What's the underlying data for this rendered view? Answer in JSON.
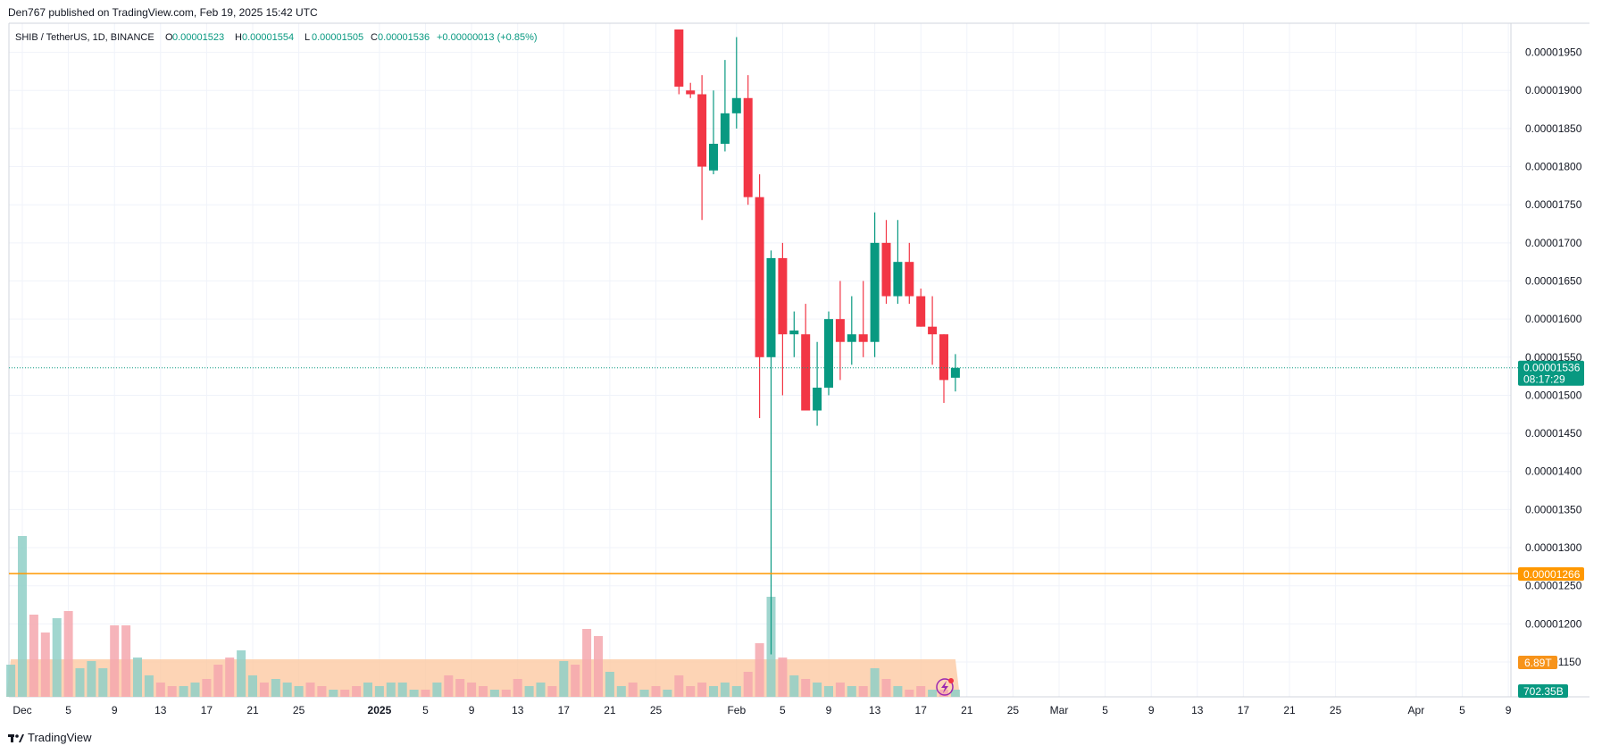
{
  "header": {
    "published": "Den767 published on TradingView.com, Feb 19, 2025 15:42 UTC"
  },
  "legend": {
    "symbol": "SHIB / TetherUS, 1D, BINANCE",
    "o_label": "O",
    "o_value": "0.00001523",
    "h_label": "H",
    "h_value": "0.00001554",
    "l_label": "L",
    "l_value": "0.00001505",
    "c_label": "C",
    "c_value": "0.00001536",
    "change": "+0.00000013 (+0.85%)"
  },
  "colors": {
    "up": "#089981",
    "down": "#f23645",
    "vol_up": "#8fcfc7",
    "vol_down": "#f5a7ae",
    "vol_ma_fill": "#fcc9a3",
    "horizontal_line": "#ff9800",
    "grid": "#f0f3fa",
    "axis_text": "#131722"
  },
  "chart_data": {
    "type": "candlestick",
    "series": [
      {
        "name": "SHIB / TetherUS",
        "points": [
          {
            "date": "2025-01-27",
            "o": 1.98e-05,
            "h": 1.98e-05,
            "l": 1.895e-05,
            "c": 1.905e-05
          },
          {
            "date": "2025-01-28",
            "o": 1.9e-05,
            "h": 1.91e-05,
            "l": 1.89e-05,
            "c": 1.895e-05
          },
          {
            "date": "2025-01-29",
            "o": 1.895e-05,
            "h": 1.92e-05,
            "l": 1.73e-05,
            "c": 1.8e-05
          },
          {
            "date": "2025-01-30",
            "o": 1.795e-05,
            "h": 1.9e-05,
            "l": 1.79e-05,
            "c": 1.83e-05
          },
          {
            "date": "2025-01-31",
            "o": 1.83e-05,
            "h": 1.94e-05,
            "l": 1.82e-05,
            "c": 1.87e-05
          },
          {
            "date": "2025-02-01",
            "o": 1.87e-05,
            "h": 1.97e-05,
            "l": 1.85e-05,
            "c": 1.89e-05
          },
          {
            "date": "2025-02-02",
            "o": 1.89e-05,
            "h": 1.92e-05,
            "l": 1.75e-05,
            "c": 1.76e-05
          },
          {
            "date": "2025-02-03",
            "o": 1.76e-05,
            "h": 1.79e-05,
            "l": 1.47e-05,
            "c": 1.55e-05
          },
          {
            "date": "2025-02-04",
            "o": 1.55e-05,
            "h": 1.69e-05,
            "l": 1.16e-05,
            "c": 1.68e-05
          },
          {
            "date": "2025-02-05",
            "o": 1.68e-05,
            "h": 1.7e-05,
            "l": 1.5e-05,
            "c": 1.58e-05
          },
          {
            "date": "2025-02-06",
            "o": 1.58e-05,
            "h": 1.61e-05,
            "l": 1.55e-05,
            "c": 1.585e-05
          },
          {
            "date": "2025-02-07",
            "o": 1.58e-05,
            "h": 1.62e-05,
            "l": 1.48e-05,
            "c": 1.48e-05
          },
          {
            "date": "2025-02-08",
            "o": 1.48e-05,
            "h": 1.57e-05,
            "l": 1.46e-05,
            "c": 1.51e-05
          },
          {
            "date": "2025-02-09",
            "o": 1.51e-05,
            "h": 1.61e-05,
            "l": 1.5e-05,
            "c": 1.6e-05
          },
          {
            "date": "2025-02-10",
            "o": 1.6e-05,
            "h": 1.65e-05,
            "l": 1.52e-05,
            "c": 1.57e-05
          },
          {
            "date": "2025-02-11",
            "o": 1.57e-05,
            "h": 1.63e-05,
            "l": 1.54e-05,
            "c": 1.58e-05
          },
          {
            "date": "2025-02-12",
            "o": 1.58e-05,
            "h": 1.65e-05,
            "l": 1.55e-05,
            "c": 1.57e-05
          },
          {
            "date": "2025-02-13",
            "o": 1.57e-05,
            "h": 1.74e-05,
            "l": 1.55e-05,
            "c": 1.7e-05
          },
          {
            "date": "2025-02-14",
            "o": 1.7e-05,
            "h": 1.73e-05,
            "l": 1.62e-05,
            "c": 1.63e-05
          },
          {
            "date": "2025-02-15",
            "o": 1.63e-05,
            "h": 1.73e-05,
            "l": 1.62e-05,
            "c": 1.675e-05
          },
          {
            "date": "2025-02-16",
            "o": 1.675e-05,
            "h": 1.7e-05,
            "l": 1.62e-05,
            "c": 1.63e-05
          },
          {
            "date": "2025-02-17",
            "o": 1.63e-05,
            "h": 1.64e-05,
            "l": 1.59e-05,
            "c": 1.59e-05
          },
          {
            "date": "2025-02-18",
            "o": 1.59e-05,
            "h": 1.63e-05,
            "l": 1.54e-05,
            "c": 1.58e-05
          },
          {
            "date": "2025-02-19",
            "o": 1.58e-05,
            "h": 1.58e-05,
            "l": 1.49e-05,
            "c": 1.52e-05
          },
          {
            "date": "2025-02-20",
            "o": 1.523e-05,
            "h": 1.554e-05,
            "l": 1.505e-05,
            "c": 1.536e-05
          }
        ]
      }
    ],
    "volume": [
      {
        "date": "2024-11-30",
        "v": 0.9,
        "up": true
      },
      {
        "date": "2024-12-01",
        "v": 4.5,
        "up": true
      },
      {
        "date": "2024-12-02",
        "v": 2.3,
        "up": false
      },
      {
        "date": "2024-12-03",
        "v": 1.8,
        "up": false
      },
      {
        "date": "2024-12-04",
        "v": 2.2,
        "up": true
      },
      {
        "date": "2024-12-05",
        "v": 2.4,
        "up": false
      },
      {
        "date": "2024-12-06",
        "v": 0.8,
        "up": true
      },
      {
        "date": "2024-12-07",
        "v": 1.0,
        "up": true
      },
      {
        "date": "2024-12-08",
        "v": 0.8,
        "up": true
      },
      {
        "date": "2024-12-09",
        "v": 2.0,
        "up": false
      },
      {
        "date": "2024-12-10",
        "v": 2.0,
        "up": false
      },
      {
        "date": "2024-12-11",
        "v": 1.1,
        "up": true
      },
      {
        "date": "2024-12-12",
        "v": 0.6,
        "up": true
      },
      {
        "date": "2024-12-13",
        "v": 0.4,
        "up": false
      },
      {
        "date": "2024-12-14",
        "v": 0.3,
        "up": false
      },
      {
        "date": "2024-12-15",
        "v": 0.3,
        "up": true
      },
      {
        "date": "2024-12-16",
        "v": 0.4,
        "up": true
      },
      {
        "date": "2024-12-17",
        "v": 0.5,
        "up": false
      },
      {
        "date": "2024-12-18",
        "v": 0.9,
        "up": false
      },
      {
        "date": "2024-12-19",
        "v": 1.1,
        "up": false
      },
      {
        "date": "2024-12-20",
        "v": 1.3,
        "up": true
      },
      {
        "date": "2024-12-21",
        "v": 0.6,
        "up": true
      },
      {
        "date": "2024-12-22",
        "v": 0.4,
        "up": false
      },
      {
        "date": "2024-12-23",
        "v": 0.5,
        "up": true
      },
      {
        "date": "2024-12-24",
        "v": 0.4,
        "up": true
      },
      {
        "date": "2024-12-25",
        "v": 0.3,
        "up": true
      },
      {
        "date": "2024-12-26",
        "v": 0.4,
        "up": false
      },
      {
        "date": "2024-12-27",
        "v": 0.3,
        "up": false
      },
      {
        "date": "2024-12-28",
        "v": 0.2,
        "up": true
      },
      {
        "date": "2024-12-29",
        "v": 0.2,
        "up": false
      },
      {
        "date": "2024-12-30",
        "v": 0.3,
        "up": false
      },
      {
        "date": "2024-12-31",
        "v": 0.4,
        "up": true
      },
      {
        "date": "2025-01-01",
        "v": 0.3,
        "up": true
      },
      {
        "date": "2025-01-02",
        "v": 0.4,
        "up": true
      },
      {
        "date": "2025-01-03",
        "v": 0.4,
        "up": true
      },
      {
        "date": "2025-01-04",
        "v": 0.2,
        "up": true
      },
      {
        "date": "2025-01-05",
        "v": 0.2,
        "up": false
      },
      {
        "date": "2025-01-06",
        "v": 0.4,
        "up": true
      },
      {
        "date": "2025-01-07",
        "v": 0.6,
        "up": false
      },
      {
        "date": "2025-01-08",
        "v": 0.5,
        "up": false
      },
      {
        "date": "2025-01-09",
        "v": 0.4,
        "up": false
      },
      {
        "date": "2025-01-10",
        "v": 0.3,
        "up": false
      },
      {
        "date": "2025-01-11",
        "v": 0.2,
        "up": true
      },
      {
        "date": "2025-01-12",
        "v": 0.2,
        "up": false
      },
      {
        "date": "2025-01-13",
        "v": 0.5,
        "up": false
      },
      {
        "date": "2025-01-14",
        "v": 0.3,
        "up": true
      },
      {
        "date": "2025-01-15",
        "v": 0.4,
        "up": true
      },
      {
        "date": "2025-01-16",
        "v": 0.3,
        "up": false
      },
      {
        "date": "2025-01-17",
        "v": 1.0,
        "up": true
      },
      {
        "date": "2025-01-18",
        "v": 0.9,
        "up": false
      },
      {
        "date": "2025-01-19",
        "v": 1.9,
        "up": false
      },
      {
        "date": "2025-01-20",
        "v": 1.7,
        "up": false
      },
      {
        "date": "2025-01-21",
        "v": 0.7,
        "up": true
      },
      {
        "date": "2025-01-22",
        "v": 0.3,
        "up": true
      },
      {
        "date": "2025-01-23",
        "v": 0.4,
        "up": false
      },
      {
        "date": "2025-01-24",
        "v": 0.2,
        "up": true
      },
      {
        "date": "2025-01-25",
        "v": 0.3,
        "up": false
      },
      {
        "date": "2025-01-26",
        "v": 0.2,
        "up": true
      },
      {
        "date": "2025-01-27",
        "v": 0.6,
        "up": false
      },
      {
        "date": "2025-01-28",
        "v": 0.3,
        "up": false
      },
      {
        "date": "2025-01-29",
        "v": 0.4,
        "up": false
      },
      {
        "date": "2025-01-30",
        "v": 0.3,
        "up": true
      },
      {
        "date": "2025-01-31",
        "v": 0.4,
        "up": true
      },
      {
        "date": "2025-02-01",
        "v": 0.3,
        "up": true
      },
      {
        "date": "2025-02-02",
        "v": 0.7,
        "up": false
      },
      {
        "date": "2025-02-03",
        "v": 1.5,
        "up": false
      },
      {
        "date": "2025-02-04",
        "v": 2.8,
        "up": true
      },
      {
        "date": "2025-02-05",
        "v": 1.1,
        "up": false
      },
      {
        "date": "2025-02-06",
        "v": 0.6,
        "up": true
      },
      {
        "date": "2025-02-07",
        "v": 0.5,
        "up": false
      },
      {
        "date": "2025-02-08",
        "v": 0.4,
        "up": true
      },
      {
        "date": "2025-02-09",
        "v": 0.3,
        "up": true
      },
      {
        "date": "2025-02-10",
        "v": 0.4,
        "up": false
      },
      {
        "date": "2025-02-11",
        "v": 0.3,
        "up": true
      },
      {
        "date": "2025-02-12",
        "v": 0.3,
        "up": false
      },
      {
        "date": "2025-02-13",
        "v": 0.8,
        "up": true
      },
      {
        "date": "2025-02-14",
        "v": 0.5,
        "up": false
      },
      {
        "date": "2025-02-15",
        "v": 0.3,
        "up": true
      },
      {
        "date": "2025-02-16",
        "v": 0.2,
        "up": false
      },
      {
        "date": "2025-02-17",
        "v": 0.3,
        "up": false
      },
      {
        "date": "2025-02-18",
        "v": 0.2,
        "up": true
      },
      {
        "date": "2025-02-19",
        "v": 0.2,
        "up": false
      },
      {
        "date": "2025-02-20",
        "v": 0.2,
        "up": true
      }
    ],
    "price_axis_ticks": [
      "0.00001950",
      "0.00001900",
      "0.00001850",
      "0.00001800",
      "0.00001750",
      "0.00001700",
      "0.00001650",
      "0.00001600",
      "0.00001550",
      "0.00001500",
      "0.00001450",
      "0.00001400",
      "0.00001350",
      "0.00001300",
      "0.00001250",
      "0.00001200",
      "0.00001150"
    ],
    "price_axis_tick_values": [
      1.95e-05,
      1.9e-05,
      1.85e-05,
      1.8e-05,
      1.75e-05,
      1.7e-05,
      1.65e-05,
      1.6e-05,
      1.55e-05,
      1.5e-05,
      1.45e-05,
      1.4e-05,
      1.35e-05,
      1.3e-05,
      1.25e-05,
      1.2e-05,
      1.15e-05
    ],
    "x_axis_ticks": [
      {
        "label": "Dec",
        "date": "2024-12-01",
        "bold": false
      },
      {
        "label": "5",
        "date": "2024-12-05",
        "bold": false
      },
      {
        "label": "9",
        "date": "2024-12-09",
        "bold": false
      },
      {
        "label": "13",
        "date": "2024-12-13",
        "bold": false
      },
      {
        "label": "17",
        "date": "2024-12-17",
        "bold": false
      },
      {
        "label": "21",
        "date": "2024-12-21",
        "bold": false
      },
      {
        "label": "25",
        "date": "2024-12-25",
        "bold": false
      },
      {
        "label": "2025",
        "date": "2025-01-01",
        "bold": true
      },
      {
        "label": "5",
        "date": "2025-01-05",
        "bold": false
      },
      {
        "label": "9",
        "date": "2025-01-09",
        "bold": false
      },
      {
        "label": "13",
        "date": "2025-01-13",
        "bold": false
      },
      {
        "label": "17",
        "date": "2025-01-17",
        "bold": false
      },
      {
        "label": "21",
        "date": "2025-01-21",
        "bold": false
      },
      {
        "label": "25",
        "date": "2025-01-25",
        "bold": false
      },
      {
        "label": "Feb",
        "date": "2025-02-01",
        "bold": false
      },
      {
        "label": "5",
        "date": "2025-02-05",
        "bold": false
      },
      {
        "label": "9",
        "date": "2025-02-09",
        "bold": false
      },
      {
        "label": "13",
        "date": "2025-02-13",
        "bold": false
      },
      {
        "label": "17",
        "date": "2025-02-17",
        "bold": false
      },
      {
        "label": "21",
        "date": "2025-02-21",
        "bold": false
      },
      {
        "label": "25",
        "date": "2025-02-25",
        "bold": false
      },
      {
        "label": "Mar",
        "date": "2025-03-01",
        "bold": false
      },
      {
        "label": "5",
        "date": "2025-03-05",
        "bold": false
      },
      {
        "label": "9",
        "date": "2025-03-09",
        "bold": false
      },
      {
        "label": "13",
        "date": "2025-03-13",
        "bold": false
      },
      {
        "label": "17",
        "date": "2025-03-17",
        "bold": false
      },
      {
        "label": "21",
        "date": "2025-03-21",
        "bold": false
      },
      {
        "label": "25",
        "date": "2025-03-25",
        "bold": false
      },
      {
        "label": "Apr",
        "date": "2025-04-01",
        "bold": false
      },
      {
        "label": "5",
        "date": "2025-04-05",
        "bold": false
      },
      {
        "label": "9",
        "date": "2025-04-09",
        "bold": false
      }
    ],
    "current_price": 1.536e-05,
    "current_price_label": "0.00001536",
    "countdown_label": "08:17:29",
    "horizontal_line_value": 1.266e-05,
    "horizontal_line_label": "0.00001266",
    "volume_ma_label": "6.89T",
    "volume_label": "702.35B",
    "ylim": [
      1.12e-05,
      2e-05
    ],
    "grid": true
  },
  "footer": {
    "brand": "TradingView"
  }
}
